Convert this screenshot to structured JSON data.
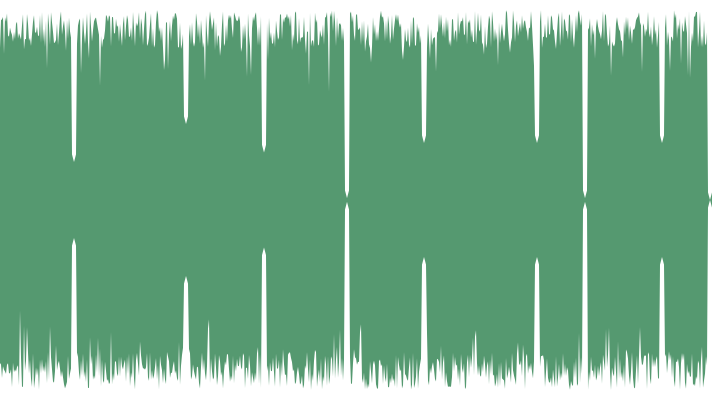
{
  "chart_data": {
    "type": "area",
    "title": "",
    "xlabel": "",
    "ylabel": "",
    "grid": false,
    "legend": "none",
    "color": "#559970",
    "background": "#ffffff",
    "x_range": [
      0,
      712
    ],
    "ylim": [
      -1,
      1
    ],
    "baseline_amplitude": 0.9,
    "dips": [
      {
        "at": 74,
        "depth": 0.2
      },
      {
        "at": 186,
        "depth": 0.4
      },
      {
        "at": 264,
        "depth": 0.25
      },
      {
        "at": 347,
        "depth": 0.01
      },
      {
        "at": 424,
        "depth": 0.3
      },
      {
        "at": 537,
        "depth": 0.3
      },
      {
        "at": 585,
        "depth": 0.01
      },
      {
        "at": 662,
        "depth": 0.3
      },
      {
        "at": 710,
        "depth": 0.0
      }
    ]
  }
}
